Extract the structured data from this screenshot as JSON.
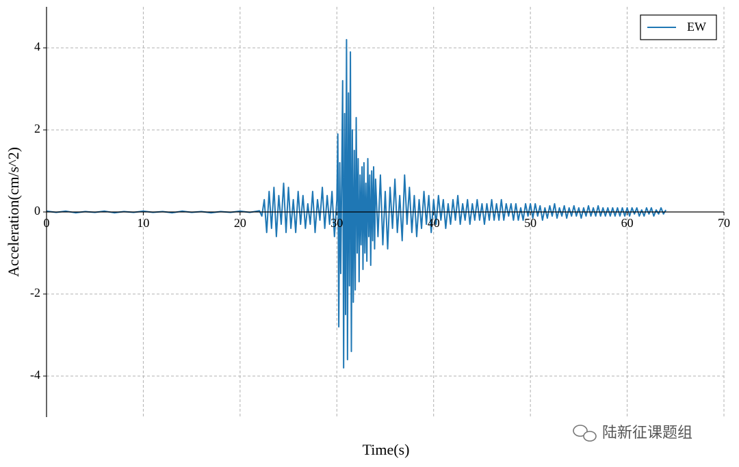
{
  "chart_data": {
    "type": "line",
    "xlabel": "Time(s)",
    "ylabel": "Acceleration(cm/s^2)",
    "watermark": "陆新征课题组",
    "xlim": [
      0,
      70
    ],
    "xticks": [
      0,
      10,
      20,
      30,
      40,
      50,
      60,
      70
    ],
    "ylim": [
      -5,
      5
    ],
    "yticks": [
      -4,
      -2,
      0,
      2,
      4
    ],
    "grid": true,
    "legend": "upper right",
    "x": [
      0,
      1,
      2,
      3,
      4,
      5,
      6,
      7,
      8,
      9,
      10,
      11,
      12,
      13,
      14,
      15,
      16,
      17,
      18,
      19,
      20,
      21,
      22,
      22.25,
      22.5,
      22.75,
      23,
      23.25,
      23.5,
      23.75,
      24,
      24.25,
      24.5,
      24.75,
      25,
      25.25,
      25.5,
      25.75,
      26,
      26.25,
      26.5,
      26.75,
      27,
      27.25,
      27.5,
      27.75,
      28,
      28.25,
      28.5,
      28.75,
      29,
      29.25,
      29.5,
      29.75,
      30,
      30.1,
      30.2,
      30.3,
      30.4,
      30.5,
      30.6,
      30.7,
      30.8,
      30.9,
      31,
      31.1,
      31.2,
      31.3,
      31.4,
      31.5,
      31.6,
      31.7,
      31.8,
      31.9,
      32,
      32.1,
      32.2,
      32.3,
      32.4,
      32.5,
      32.6,
      32.7,
      32.8,
      32.9,
      33,
      33.1,
      33.2,
      33.3,
      33.4,
      33.5,
      33.6,
      33.7,
      33.8,
      33.9,
      34,
      34.25,
      34.5,
      34.75,
      35,
      35.25,
      35.5,
      35.75,
      36,
      36.25,
      36.5,
      36.75,
      37,
      37.25,
      37.5,
      37.75,
      38,
      38.25,
      38.5,
      38.75,
      39,
      39.25,
      39.5,
      39.75,
      40,
      40.25,
      40.5,
      40.75,
      41,
      41.25,
      41.5,
      41.75,
      42,
      42.25,
      42.5,
      42.75,
      43,
      43.25,
      43.5,
      43.75,
      44,
      44.25,
      44.5,
      44.75,
      45,
      45.25,
      45.5,
      45.75,
      46,
      46.25,
      46.5,
      46.75,
      47,
      47.25,
      47.5,
      47.75,
      48,
      48.25,
      48.5,
      48.75,
      49,
      49.25,
      49.5,
      49.75,
      50,
      50.25,
      50.5,
      50.75,
      51,
      51.25,
      51.5,
      51.75,
      52,
      52.25,
      52.5,
      52.75,
      53,
      53.25,
      53.5,
      53.75,
      54,
      54.25,
      54.5,
      54.75,
      55,
      55.25,
      55.5,
      55.75,
      56,
      56.25,
      56.5,
      56.75,
      57,
      57.25,
      57.5,
      57.75,
      58,
      58.25,
      58.5,
      58.75,
      59,
      59.25,
      59.5,
      59.75,
      60,
      60.25,
      60.5,
      60.75,
      61,
      61.25,
      61.5,
      61.75,
      62,
      62.25,
      62.5,
      62.75,
      63,
      63.25,
      63.5,
      63.75,
      64
    ],
    "series": [
      {
        "name": "EW",
        "color": "#1f77b4",
        "values": [
          0.02,
          -0.01,
          0.02,
          -0.02,
          0.01,
          -0.01,
          0.02,
          -0.02,
          0.01,
          -0.01,
          0.02,
          -0.01,
          0.01,
          -0.02,
          0.02,
          -0.01,
          0.01,
          -0.02,
          0.01,
          -0.01,
          0.02,
          -0.01,
          0.03,
          -0.1,
          0.3,
          -0.5,
          0.5,
          -0.4,
          0.6,
          -0.6,
          0.4,
          -0.3,
          0.7,
          -0.5,
          0.6,
          -0.4,
          0.3,
          -0.5,
          0.5,
          -0.3,
          0.4,
          -0.4,
          0.2,
          -0.3,
          0.5,
          -0.5,
          0.3,
          -0.2,
          0.6,
          -0.4,
          0.4,
          -0.3,
          0.5,
          -0.6,
          0.3,
          1.9,
          -2.8,
          1.2,
          -1.5,
          0.8,
          3.2,
          -3.8,
          2.4,
          -2.5,
          4.2,
          -3.6,
          2.9,
          -1.8,
          3.9,
          -3.4,
          2.0,
          -2.2,
          1.5,
          -1.9,
          2.3,
          -1.0,
          1.3,
          -1.7,
          0.9,
          -0.8,
          1.1,
          -1.4,
          1.2,
          -1.0,
          0.7,
          -1.2,
          1.3,
          -0.6,
          0.9,
          -1.3,
          1.0,
          -0.7,
          1.1,
          -0.9,
          0.8,
          -0.6,
          0.9,
          -0.8,
          0.5,
          -0.9,
          0.6,
          -0.4,
          0.8,
          -0.5,
          0.4,
          -0.7,
          0.9,
          -0.3,
          0.6,
          -0.5,
          0.4,
          -0.6,
          0.3,
          -0.4,
          0.5,
          -0.3,
          0.4,
          -0.5,
          0.3,
          -0.3,
          0.4,
          -0.2,
          0.3,
          -0.4,
          0.2,
          -0.3,
          0.3,
          -0.2,
          0.4,
          -0.3,
          0.2,
          -0.2,
          0.3,
          -0.3,
          0.2,
          -0.2,
          0.3,
          -0.2,
          0.2,
          -0.3,
          0.2,
          -0.2,
          0.3,
          -0.2,
          0.2,
          -0.2,
          0.3,
          -0.2,
          0.2,
          -0.1,
          0.2,
          -0.2,
          0.2,
          -0.2,
          0.1,
          -0.2,
          0.2,
          -0.1,
          0.2,
          -0.15,
          0.2,
          -0.1,
          0.15,
          -0.2,
          0.1,
          -0.15,
          0.15,
          -0.1,
          0.2,
          -0.15,
          0.1,
          -0.1,
          0.15,
          -0.15,
          0.1,
          -0.1,
          0.15,
          -0.1,
          0.1,
          -0.15,
          0.1,
          -0.1,
          0.15,
          -0.1,
          0.1,
          -0.1,
          0.15,
          -0.1,
          0.1,
          -0.1,
          0.1,
          -0.1,
          0.1,
          -0.1,
          0.1,
          -0.1,
          0.1,
          -0.1,
          0.1,
          -0.1,
          0.1,
          -0.05,
          0.1,
          -0.1,
          0.05,
          -0.1,
          0.1,
          -0.05,
          0.1,
          -0.1,
          0.05,
          -0.05,
          0.1,
          -0.05,
          0.05
        ]
      }
    ]
  }
}
